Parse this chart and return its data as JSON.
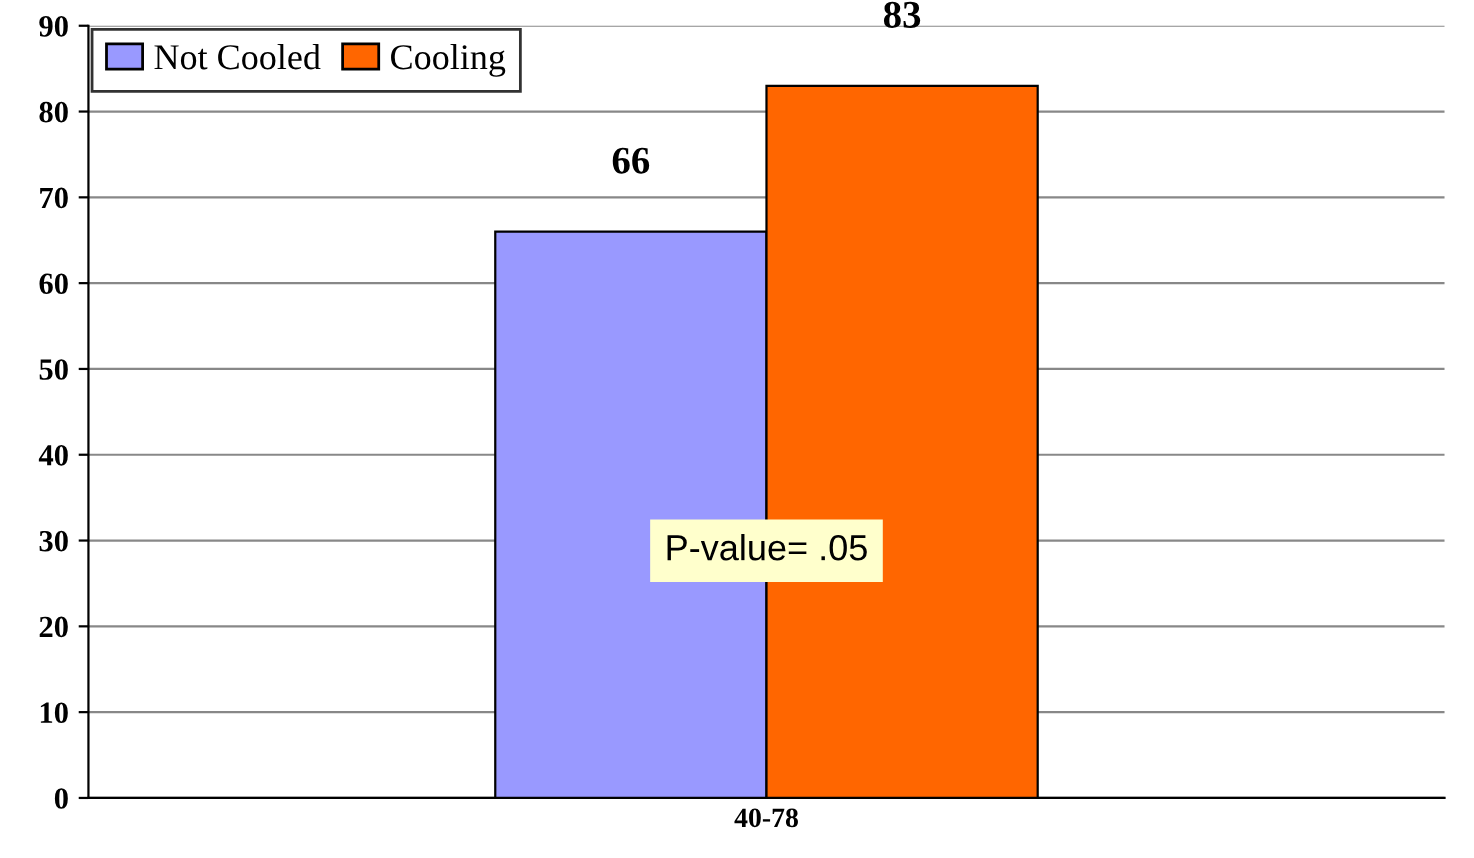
{
  "chart_data": {
    "type": "bar",
    "categories": [
      "40-78"
    ],
    "series": [
      {
        "name": "Not Cooled",
        "color": "#9999ff",
        "values": [
          66
        ]
      },
      {
        "name": "Cooling",
        "color": "#ff6600",
        "values": [
          83
        ]
      }
    ],
    "ylim": [
      0,
      90
    ],
    "yticks": [
      0,
      10,
      20,
      30,
      40,
      50,
      60,
      70,
      80,
      90
    ],
    "grid": "y",
    "legend": "top left",
    "data_labels": true,
    "annotations": [
      "P-value= .05"
    ]
  }
}
